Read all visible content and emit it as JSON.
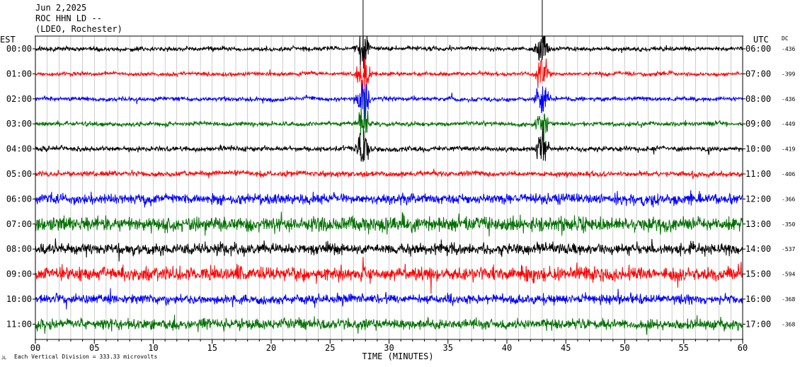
{
  "header": {
    "date": "Jun 2,2025",
    "station": "ROC HHN LD --",
    "network": "(LDEO, Rochester)"
  },
  "footer": {
    "scale_note": "Each Vertical Division = 333.33 microvolts",
    "mark": "JL"
  },
  "chart_data": {
    "type": "line",
    "title": "Jun 2,2025 ROC HHN LD -- (LDEO, Rochester)",
    "xlabel": "TIME (MINUTES)",
    "left_axis_label": "EST",
    "right_axis_label": "UTC",
    "dc_label": "DC",
    "x_ticks": [
      "00",
      "05",
      "10",
      "15",
      "20",
      "25",
      "30",
      "35",
      "40",
      "45",
      "50",
      "55",
      "60"
    ],
    "xlim": [
      0,
      60
    ],
    "grid": true,
    "colors": {
      "black": "#000000",
      "red": "#ff0000",
      "blue": "#0000ff",
      "green": "#007000"
    },
    "series": [
      {
        "est": "00:00",
        "utc": "06:00",
        "dc": "-436",
        "color": "black",
        "amp": 4.0
      },
      {
        "est": "01:00",
        "utc": "07:00",
        "dc": "-399",
        "color": "red",
        "amp": 3.5
      },
      {
        "est": "02:00",
        "utc": "08:00",
        "dc": "-436",
        "color": "blue",
        "amp": 4.0
      },
      {
        "est": "03:00",
        "utc": "09:00",
        "dc": "-449",
        "color": "green",
        "amp": 4.0
      },
      {
        "est": "04:00",
        "utc": "10:00",
        "dc": "-419",
        "color": "black",
        "amp": 4.5
      },
      {
        "est": "05:00",
        "utc": "11:00",
        "dc": "-406",
        "color": "red",
        "amp": 5.0
      },
      {
        "est": "06:00",
        "utc": "12:00",
        "dc": "-366",
        "color": "blue",
        "amp": 10.0
      },
      {
        "est": "07:00",
        "utc": "13:00",
        "dc": "-350",
        "color": "green",
        "amp": 14.0
      },
      {
        "est": "08:00",
        "utc": "14:00",
        "dc": "-537",
        "color": "black",
        "amp": 11.0
      },
      {
        "est": "09:00",
        "utc": "15:00",
        "dc": "-594",
        "color": "red",
        "amp": 13.0
      },
      {
        "est": "10:00",
        "utc": "16:00",
        "dc": "-368",
        "color": "blue",
        "amp": 9.0
      },
      {
        "est": "11:00",
        "utc": "17:00",
        "dc": "-368",
        "color": "green",
        "amp": 10.0
      }
    ],
    "events": [
      {
        "minute": 27.8,
        "rows": [
          0,
          1,
          2,
          3,
          4
        ],
        "amp": 45
      },
      {
        "minute": 43.0,
        "rows": [
          0,
          1,
          2,
          3,
          4
        ],
        "amp": 40
      }
    ]
  }
}
